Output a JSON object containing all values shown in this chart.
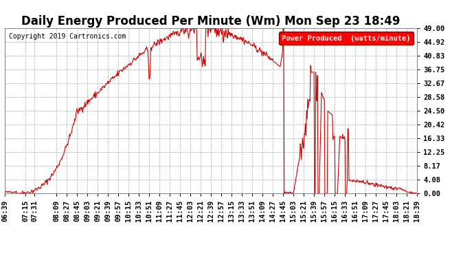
{
  "title": "Daily Energy Produced Per Minute (Wm) Mon Sep 23 18:49",
  "copyright": "Copyright 2019 Cartronics.com",
  "legend_label": "Power Produced  (watts/minute)",
  "background_color": "#ffffff",
  "line_color": "#cc0000",
  "yticks": [
    0.0,
    4.08,
    8.17,
    12.25,
    16.33,
    20.42,
    24.5,
    28.58,
    32.67,
    36.75,
    40.83,
    44.92,
    49.0
  ],
  "ytick_labels": [
    "0.00",
    "4.08",
    "8.17",
    "12.25",
    "16.33",
    "20.42",
    "24.50",
    "28.58",
    "32.67",
    "36.75",
    "40.83",
    "44.92",
    "49.00"
  ],
  "ylim": [
    0,
    49.0
  ],
  "xtick_labels": [
    "06:39",
    "07:15",
    "07:31",
    "08:09",
    "08:27",
    "08:45",
    "09:03",
    "09:21",
    "09:39",
    "09:57",
    "10:15",
    "10:33",
    "10:51",
    "11:09",
    "11:27",
    "11:45",
    "12:03",
    "12:21",
    "12:39",
    "12:57",
    "13:15",
    "13:33",
    "13:51",
    "14:09",
    "14:27",
    "14:45",
    "15:03",
    "15:21",
    "15:39",
    "15:57",
    "16:15",
    "16:33",
    "16:51",
    "17:09",
    "17:27",
    "17:45",
    "18:03",
    "18:21",
    "18:39"
  ],
  "grid_color": "#aaaaaa",
  "title_fontsize": 12,
  "axis_fontsize": 7.5,
  "start_time": "06:39",
  "end_time": "18:39"
}
